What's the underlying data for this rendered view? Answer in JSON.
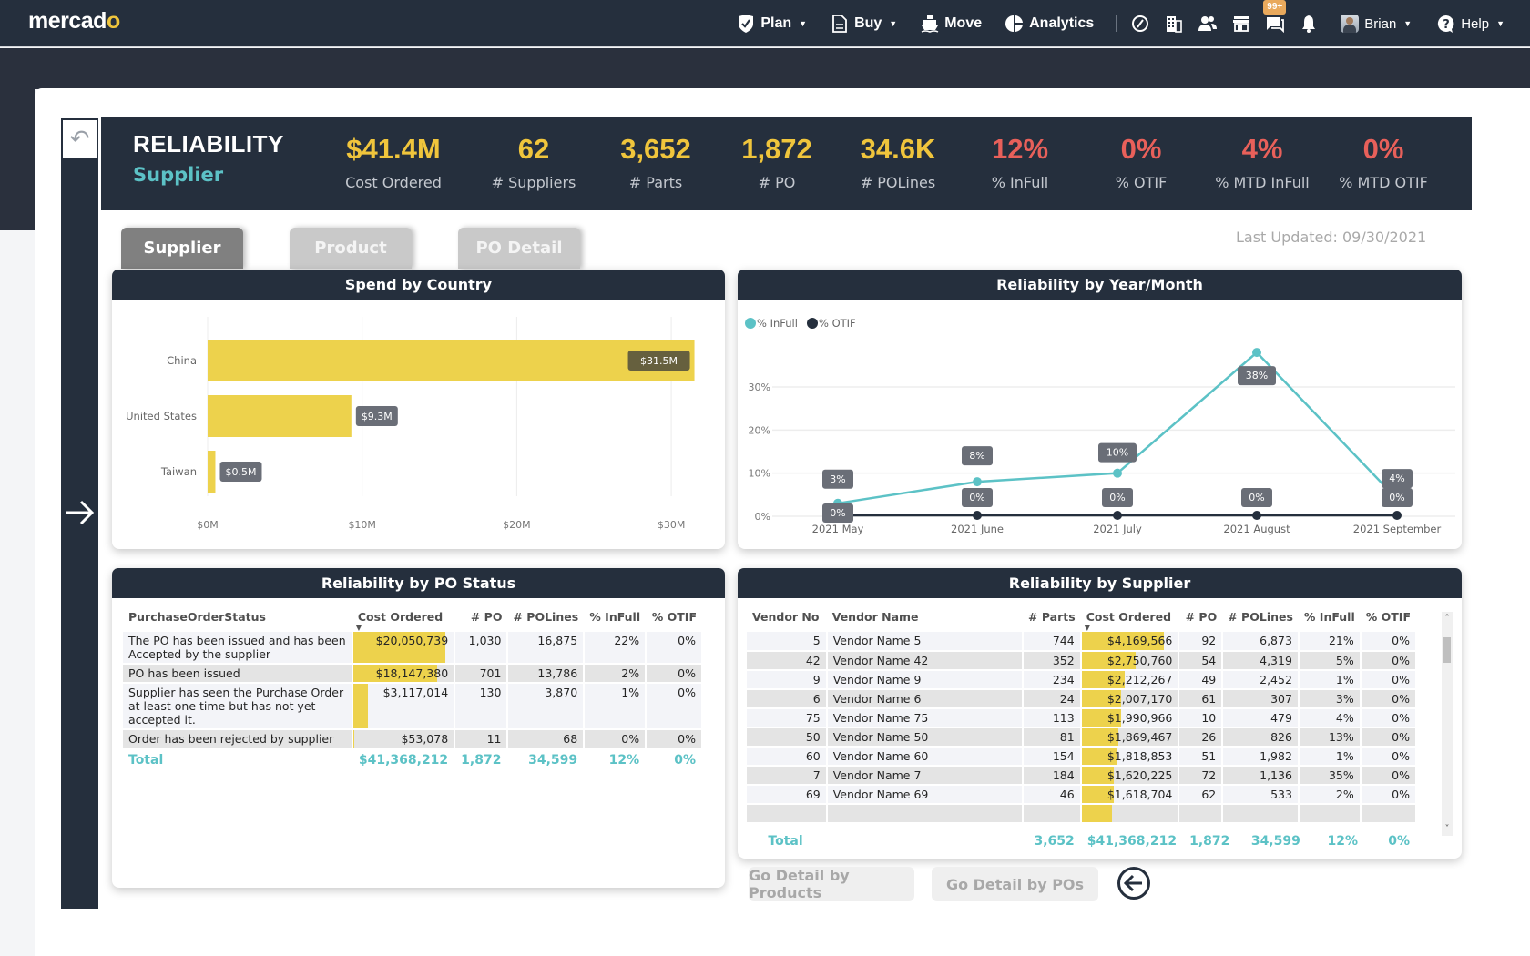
{
  "app": {
    "logo_main": "mercad",
    "logo_accent": "o"
  },
  "nav": {
    "items": [
      {
        "label": "Plan",
        "icon": "shield-check-icon",
        "dropdown": true
      },
      {
        "label": "Buy",
        "icon": "document-icon",
        "dropdown": true
      },
      {
        "label": "Move",
        "icon": "ship-icon",
        "dropdown": false
      },
      {
        "label": "Analytics",
        "icon": "pie-chart-icon",
        "dropdown": false
      }
    ],
    "icons": [
      "dashboard-gauge-icon",
      "building-icon",
      "users-icon",
      "store-icon",
      "chat-icon",
      "bell-icon"
    ],
    "chat_badge": "99+",
    "user": "Brian",
    "help": "Help"
  },
  "header": {
    "title": "RELIABILITY",
    "subtitle": "Supplier",
    "kpis": [
      {
        "value": "$41.4M",
        "label": "Cost Ordered",
        "alert": false
      },
      {
        "value": "62",
        "label": "# Suppliers",
        "alert": false
      },
      {
        "value": "3,652",
        "label": "# Parts",
        "alert": false
      },
      {
        "value": "1,872",
        "label": "# PO",
        "alert": false
      },
      {
        "value": "34.6K",
        "label": "# POLines",
        "alert": false
      },
      {
        "value": "12%",
        "label": "% InFull",
        "alert": true
      },
      {
        "value": "0%",
        "label": "% OTIF",
        "alert": true
      },
      {
        "value": "4%",
        "label": "% MTD InFull",
        "alert": true
      },
      {
        "value": "0%",
        "label": "% MTD OTIF",
        "alert": true
      }
    ]
  },
  "tabs": [
    {
      "label": "Supplier",
      "active": true
    },
    {
      "label": "Product",
      "active": false
    },
    {
      "label": "PO Detail",
      "active": false
    }
  ],
  "last_updated": "Last Updated: 09/30/2021",
  "colors": {
    "accent_yellow": "#f0c53c",
    "bar_yellow": "#edd24c",
    "teal": "#5cc2c6",
    "alert_red": "#e8605a",
    "navy": "#252f3d"
  },
  "chart_data": [
    {
      "type": "bar",
      "orientation": "horizontal",
      "title": "Spend by Country",
      "categories": [
        "China",
        "United States",
        "Taiwan"
      ],
      "values": [
        31.5,
        9.3,
        0.5
      ],
      "data_labels": [
        "$31.5M",
        "$9.3M",
        "$0.5M"
      ],
      "xticks": [
        "$0M",
        "$10M",
        "$20M",
        "$30M"
      ],
      "xlim": [
        0,
        33
      ],
      "unit": "$M",
      "grid": true
    },
    {
      "type": "line",
      "title": "Reliability by Year/Month",
      "x": [
        "2021 May",
        "2021 June",
        "2021 July",
        "2021 August",
        "2021 September"
      ],
      "series": [
        {
          "name": "% InFull",
          "values": [
            3,
            8,
            10,
            38,
            4
          ],
          "labels": [
            "3%",
            "8%",
            "10%",
            "38%",
            "4%"
          ],
          "color": "#5cc2c6"
        },
        {
          "name": "% OTIF",
          "values": [
            0,
            0,
            0,
            0,
            0
          ],
          "labels": [
            "0%",
            "0%",
            "0%",
            "0%",
            "0%"
          ],
          "color": "#252f3d"
        }
      ],
      "yticks": [
        "0%",
        "10%",
        "20%",
        "30%"
      ],
      "ylim": [
        0,
        40
      ],
      "legend": "top-left",
      "grid": true
    }
  ],
  "po_status": {
    "title": "Reliability by PO Status",
    "columns": [
      "PurchaseOrderStatus",
      "Cost Ordered",
      "# PO",
      "# POLines",
      "% InFull",
      "% OTIF"
    ],
    "rows": [
      {
        "status": "The PO has been issued and has been Accepted by the supplier",
        "cost": "$20,050,739",
        "cost_value": 20050739,
        "po": "1,030",
        "polines": "16,875",
        "infull": "22%",
        "otif": "0%"
      },
      {
        "status": "PO has been issued",
        "cost": "$18,147,380",
        "cost_value": 18147380,
        "po": "701",
        "polines": "13,786",
        "infull": "2%",
        "otif": "0%"
      },
      {
        "status": "Supplier has seen the Purchase Order at least one time but has not yet accepted it.",
        "cost": "$3,117,014",
        "cost_value": 3117014,
        "po": "130",
        "polines": "3,870",
        "infull": "1%",
        "otif": "0%"
      },
      {
        "status": "Order has been rejected by supplier",
        "cost": "$53,078",
        "cost_value": 53078,
        "po": "11",
        "polines": "68",
        "infull": "0%",
        "otif": "0%"
      }
    ],
    "total": {
      "label": "Total",
      "cost": "$41,368,212",
      "po": "1,872",
      "polines": "34,599",
      "infull": "12%",
      "otif": "0%"
    }
  },
  "supplier": {
    "title": "Reliability by Supplier",
    "columns": [
      "Vendor No",
      "Vendor Name",
      "# Parts",
      "Cost Ordered",
      "# PO",
      "# POLines",
      "% InFull",
      "% OTIF"
    ],
    "rows": [
      {
        "no": "5",
        "name": "Vendor Name 5",
        "parts": "744",
        "cost": "$4,169,566",
        "cost_value": 4169566,
        "po": "92",
        "polines": "6,873",
        "infull": "21%",
        "otif": "0%"
      },
      {
        "no": "42",
        "name": "Vendor Name 42",
        "parts": "352",
        "cost": "$2,750,760",
        "cost_value": 2750760,
        "po": "54",
        "polines": "4,319",
        "infull": "5%",
        "otif": "0%"
      },
      {
        "no": "9",
        "name": "Vendor Name 9",
        "parts": "234",
        "cost": "$2,212,267",
        "cost_value": 2212267,
        "po": "49",
        "polines": "2,452",
        "infull": "1%",
        "otif": "0%"
      },
      {
        "no": "6",
        "name": "Vendor Name 6",
        "parts": "24",
        "cost": "$2,007,170",
        "cost_value": 2007170,
        "po": "61",
        "polines": "307",
        "infull": "3%",
        "otif": "0%"
      },
      {
        "no": "75",
        "name": "Vendor Name 75",
        "parts": "113",
        "cost": "$1,990,966",
        "cost_value": 1990966,
        "po": "10",
        "polines": "479",
        "infull": "4%",
        "otif": "0%"
      },
      {
        "no": "50",
        "name": "Vendor Name 50",
        "parts": "81",
        "cost": "$1,869,467",
        "cost_value": 1869467,
        "po": "26",
        "polines": "826",
        "infull": "13%",
        "otif": "0%"
      },
      {
        "no": "60",
        "name": "Vendor Name 60",
        "parts": "154",
        "cost": "$1,818,853",
        "cost_value": 1818853,
        "po": "51",
        "polines": "1,982",
        "infull": "1%",
        "otif": "0%"
      },
      {
        "no": "7",
        "name": "Vendor Name 7",
        "parts": "184",
        "cost": "$1,620,225",
        "cost_value": 1620225,
        "po": "72",
        "polines": "1,136",
        "infull": "35%",
        "otif": "0%"
      },
      {
        "no": "69",
        "name": "Vendor Name 69",
        "parts": "46",
        "cost": "$1,618,704",
        "cost_value": 1618704,
        "po": "62",
        "polines": "533",
        "infull": "2%",
        "otif": "0%"
      }
    ],
    "total": {
      "label": "Total",
      "parts": "3,652",
      "cost": "$41,368,212",
      "po": "1,872",
      "polines": "34,599",
      "infull": "12%",
      "otif": "0%"
    }
  },
  "buttons": {
    "detail_products": "Go Detail by Products",
    "detail_pos": "Go Detail by POs"
  },
  "sidebar": {
    "undo_icon": "undo-icon",
    "forward_icon": "arrow-right-icon"
  }
}
